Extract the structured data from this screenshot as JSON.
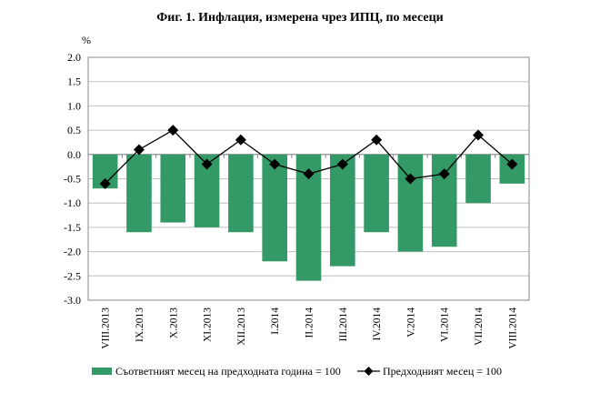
{
  "chart_data": {
    "type": "bar",
    "title": "Фиг. 1. Инфлация, измерена чрез ИПЦ, по месеци",
    "ylabel": "%",
    "ylim": [
      -3.0,
      2.0
    ],
    "yticks": [
      "2.0",
      "1.5",
      "1.0",
      "0.5",
      "0.0",
      "-0.5",
      "-1.0",
      "-1.5",
      "-2.0",
      "-2.5",
      "-3.0"
    ],
    "grid": true,
    "legend": "bottom",
    "categories": [
      "VIII.2013",
      "IX.2013",
      "X.2013",
      "XI.2013",
      "XII.2013",
      "I.2014",
      "II.2014",
      "III.2014",
      "IV.2014",
      "V.2014",
      "VI.2014",
      "VII.2014",
      "VIII.2014"
    ],
    "series": [
      {
        "name": "Съответният месец на предходната година = 100",
        "type": "bar",
        "color": "#339966",
        "values": [
          -0.7,
          -1.6,
          -1.4,
          -1.5,
          -1.6,
          -2.2,
          -2.6,
          -2.3,
          -1.6,
          -2.0,
          -1.9,
          -1.0,
          -0.6
        ]
      },
      {
        "name": "Предходният месец = 100",
        "type": "line",
        "color": "#000000",
        "marker": "diamond",
        "values": [
          -0.6,
          0.1,
          0.5,
          -0.2,
          0.3,
          -0.2,
          -0.4,
          -0.2,
          0.3,
          -0.5,
          -0.4,
          0.4,
          -0.2
        ]
      }
    ]
  }
}
